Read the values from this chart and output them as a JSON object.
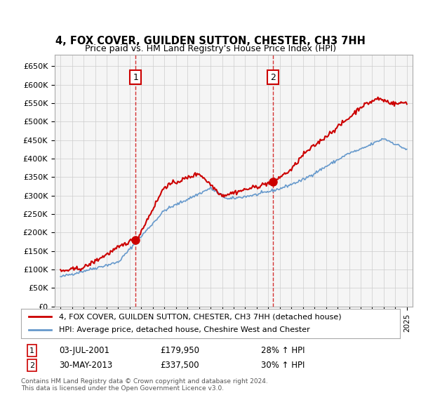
{
  "title": "4, FOX COVER, GUILDEN SUTTON, CHESTER, CH3 7HH",
  "subtitle": "Price paid vs. HM Land Registry's House Price Index (HPI)",
  "legend_line1": "4, FOX COVER, GUILDEN SUTTON, CHESTER, CH3 7HH (detached house)",
  "legend_line2": "HPI: Average price, detached house, Cheshire West and Chester",
  "red_color": "#cc0000",
  "blue_color": "#6699cc",
  "sale1_date": "03-JUL-2001",
  "sale1_price": "£179,950",
  "sale1_hpi": "28% ↑ HPI",
  "sale2_date": "30-MAY-2013",
  "sale2_price": "£337,500",
  "sale2_hpi": "30% ↑ HPI",
  "footnote1": "Contains HM Land Registry data © Crown copyright and database right 2024.",
  "footnote2": "This data is licensed under the Open Government Licence v3.0.",
  "ylim": [
    0,
    680000
  ],
  "yticks": [
    0,
    50000,
    100000,
    150000,
    200000,
    250000,
    300000,
    350000,
    400000,
    450000,
    500000,
    550000,
    600000,
    650000
  ],
  "sale1_year": 2001.5,
  "sale1_value": 179950,
  "sale2_year": 2013.4,
  "sale2_value": 337500,
  "background_color": "#ffffff",
  "grid_color": "#cccccc"
}
